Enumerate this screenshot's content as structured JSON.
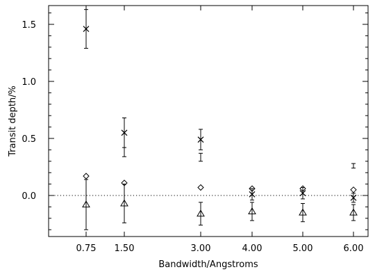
{
  "chart_data": {
    "type": "scatter",
    "xlabel": "Bandwidth/Angstroms",
    "ylabel": "Transit depth/%",
    "x_ticks": [
      0.75,
      1.5,
      3.0,
      4.0,
      5.0,
      6.0
    ],
    "x_tick_labels": [
      "0.75",
      "1.50",
      "3.00",
      "4.00",
      "5.00",
      "6.00"
    ],
    "y_ticks": [
      0.0,
      0.5,
      1.0,
      1.5
    ],
    "y_tick_labels": [
      "0.0",
      "0.5",
      "1.0",
      "1.5"
    ],
    "ylim": [
      -0.34,
      1.68
    ],
    "reference_line": {
      "y": 0.0,
      "style": "dotted"
    },
    "series": [
      {
        "marker": "cross",
        "points": [
          {
            "x": 0.75,
            "y": 1.46,
            "yerr_low": 0.17,
            "yerr_high": 0.17
          },
          {
            "x": 1.5,
            "y": 0.55,
            "yerr_low": 0.13,
            "yerr_high": 0.13
          },
          {
            "x": 3.0,
            "y": 0.49,
            "yerr_low": 0.09,
            "yerr_high": 0.09
          },
          {
            "x": 4.0,
            "y": 0.01,
            "yerr_low": 0.05,
            "yerr_high": 0.05
          },
          {
            "x": 5.0,
            "y": 0.02,
            "yerr_low": 0.05,
            "yerr_high": 0.05
          },
          {
            "x": 6.0,
            "y": -0.02,
            "yerr_low": 0.04,
            "yerr_high": 0.04
          }
        ]
      },
      {
        "marker": "diamond",
        "points": [
          {
            "x": 0.75,
            "y": 0.17
          },
          {
            "x": 1.5,
            "y": 0.11
          },
          {
            "x": 3.0,
            "y": 0.07
          },
          {
            "x": 4.0,
            "y": 0.06
          },
          {
            "x": 5.0,
            "y": 0.06
          },
          {
            "x": 6.0,
            "y": 0.05
          }
        ]
      },
      {
        "marker": "triangle",
        "points": [
          {
            "x": 0.75,
            "y": -0.08,
            "yerr_low": 0.22,
            "yerr_high": 0.22
          },
          {
            "x": 1.5,
            "y": -0.07,
            "yerr_low": 0.17,
            "yerr_high": 0.17
          },
          {
            "x": 3.0,
            "y": -0.16,
            "yerr_low": 0.1,
            "yerr_high": 0.1
          },
          {
            "x": 4.0,
            "y": -0.14,
            "yerr_low": 0.08,
            "yerr_high": 0.08
          },
          {
            "x": 5.0,
            "y": -0.15,
            "yerr_low": 0.08,
            "yerr_high": 0.08
          },
          {
            "x": 6.0,
            "y": -0.15,
            "yerr_low": 0.07,
            "yerr_high": 0.07
          }
        ]
      }
    ],
    "extra_error_bars": [
      {
        "x": 1.5,
        "y_low": 0.34,
        "y_high": 0.68
      },
      {
        "x": 3.0,
        "y_low": 0.3,
        "y_high": 0.37
      },
      {
        "x": 6.0,
        "y_low": 0.24,
        "y_high": 0.28
      }
    ]
  }
}
